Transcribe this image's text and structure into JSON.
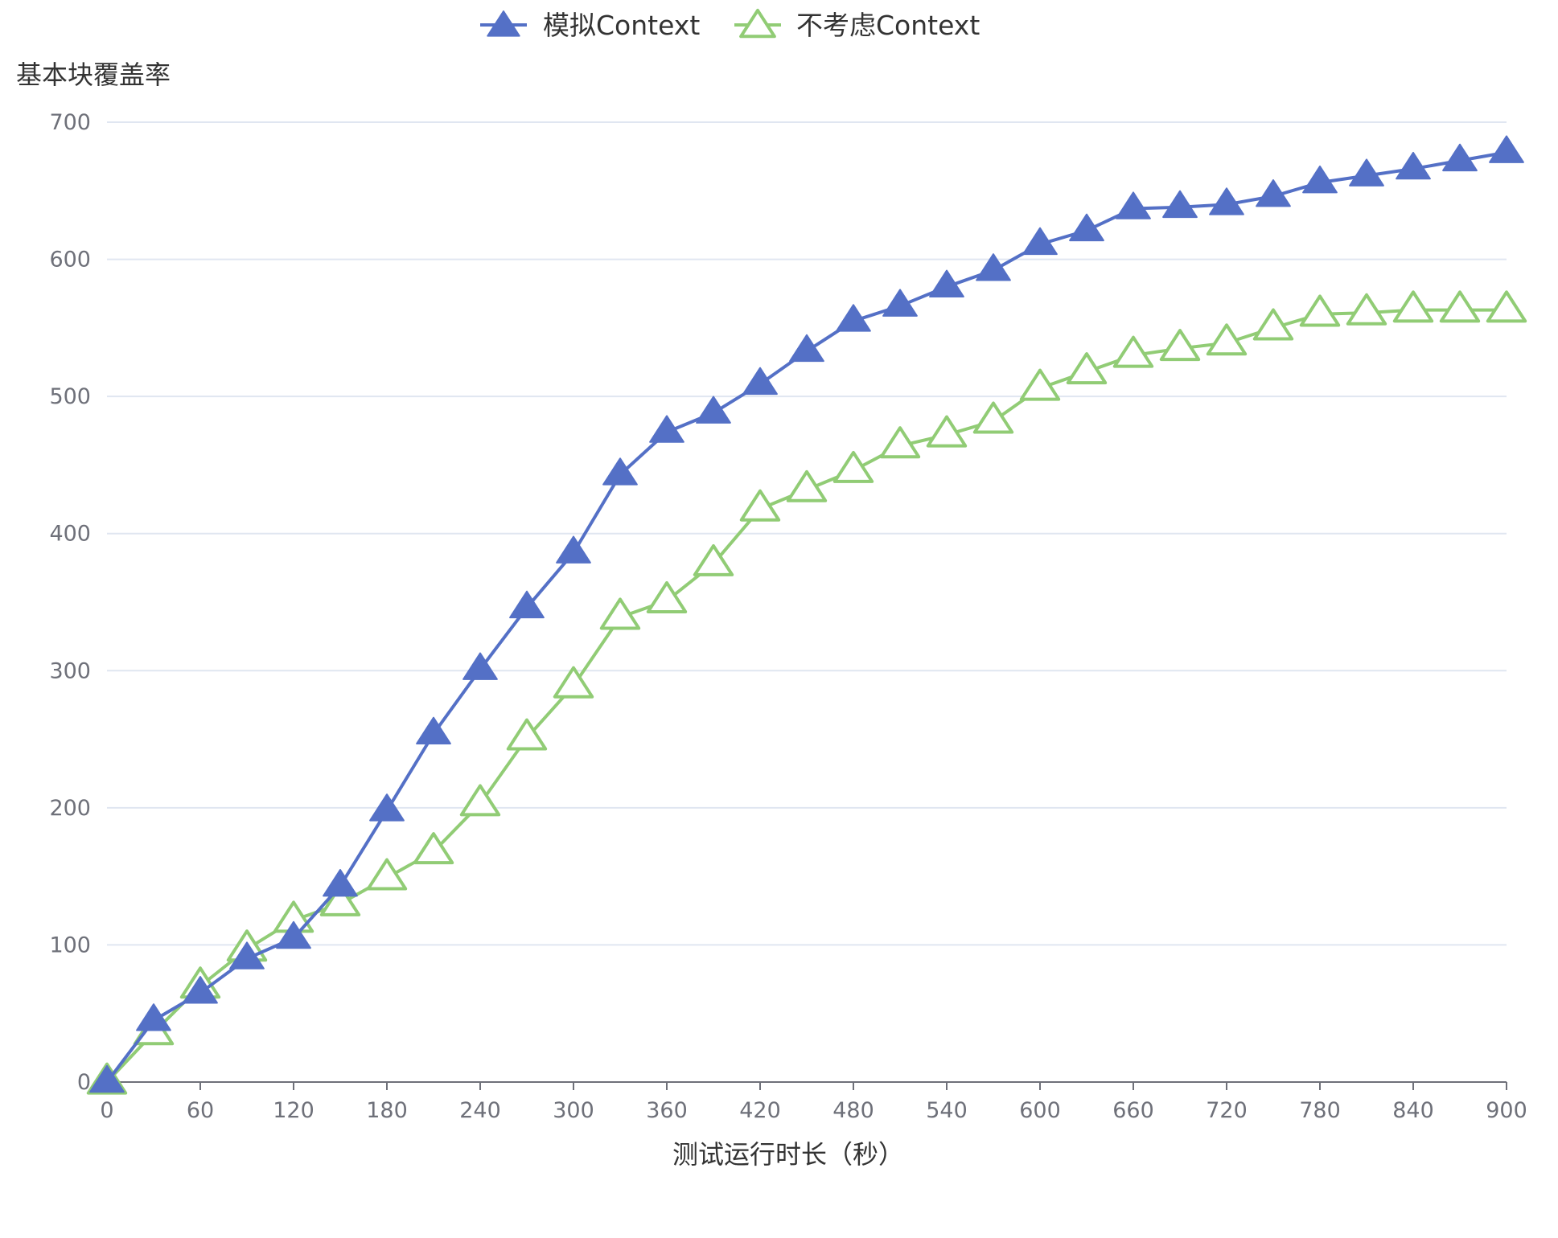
{
  "chart_data": {
    "type": "line",
    "title": "",
    "xlabel": "测试运行时长（秒）",
    "ylabel": "基本块覆盖率",
    "x": [
      0,
      30,
      60,
      90,
      120,
      150,
      180,
      210,
      240,
      270,
      300,
      330,
      360,
      390,
      420,
      450,
      480,
      510,
      540,
      570,
      600,
      630,
      660,
      690,
      720,
      750,
      780,
      810,
      840,
      870,
      900
    ],
    "x_ticks": [
      0,
      60,
      120,
      180,
      240,
      300,
      360,
      420,
      480,
      540,
      600,
      660,
      720,
      780,
      840,
      900
    ],
    "y_ticks": [
      0,
      100,
      200,
      300,
      400,
      500,
      600,
      700
    ],
    "xlim": [
      0,
      900
    ],
    "ylim": [
      0,
      700
    ],
    "grid": "horizontal",
    "legend": "top-center",
    "series": [
      {
        "name": "模拟Context",
        "marker": "filled-triangle",
        "color": "#5470c6",
        "values": [
          0,
          45,
          65,
          90,
          105,
          143,
          198,
          254,
          301,
          346,
          386,
          443,
          474,
          488,
          509,
          533,
          555,
          566,
          580,
          592,
          611,
          621,
          637,
          638,
          640,
          646,
          656,
          661,
          666,
          672,
          678
        ]
      },
      {
        "name": "不考虑Context",
        "marker": "hollow-triangle",
        "color": "#91cc75",
        "values": [
          0,
          36,
          70,
          97,
          118,
          130,
          149,
          168,
          203,
          251,
          289,
          339,
          351,
          378,
          418,
          432,
          446,
          464,
          472,
          482,
          506,
          518,
          530,
          535,
          539,
          550,
          560,
          561,
          563,
          563,
          563
        ]
      }
    ]
  }
}
